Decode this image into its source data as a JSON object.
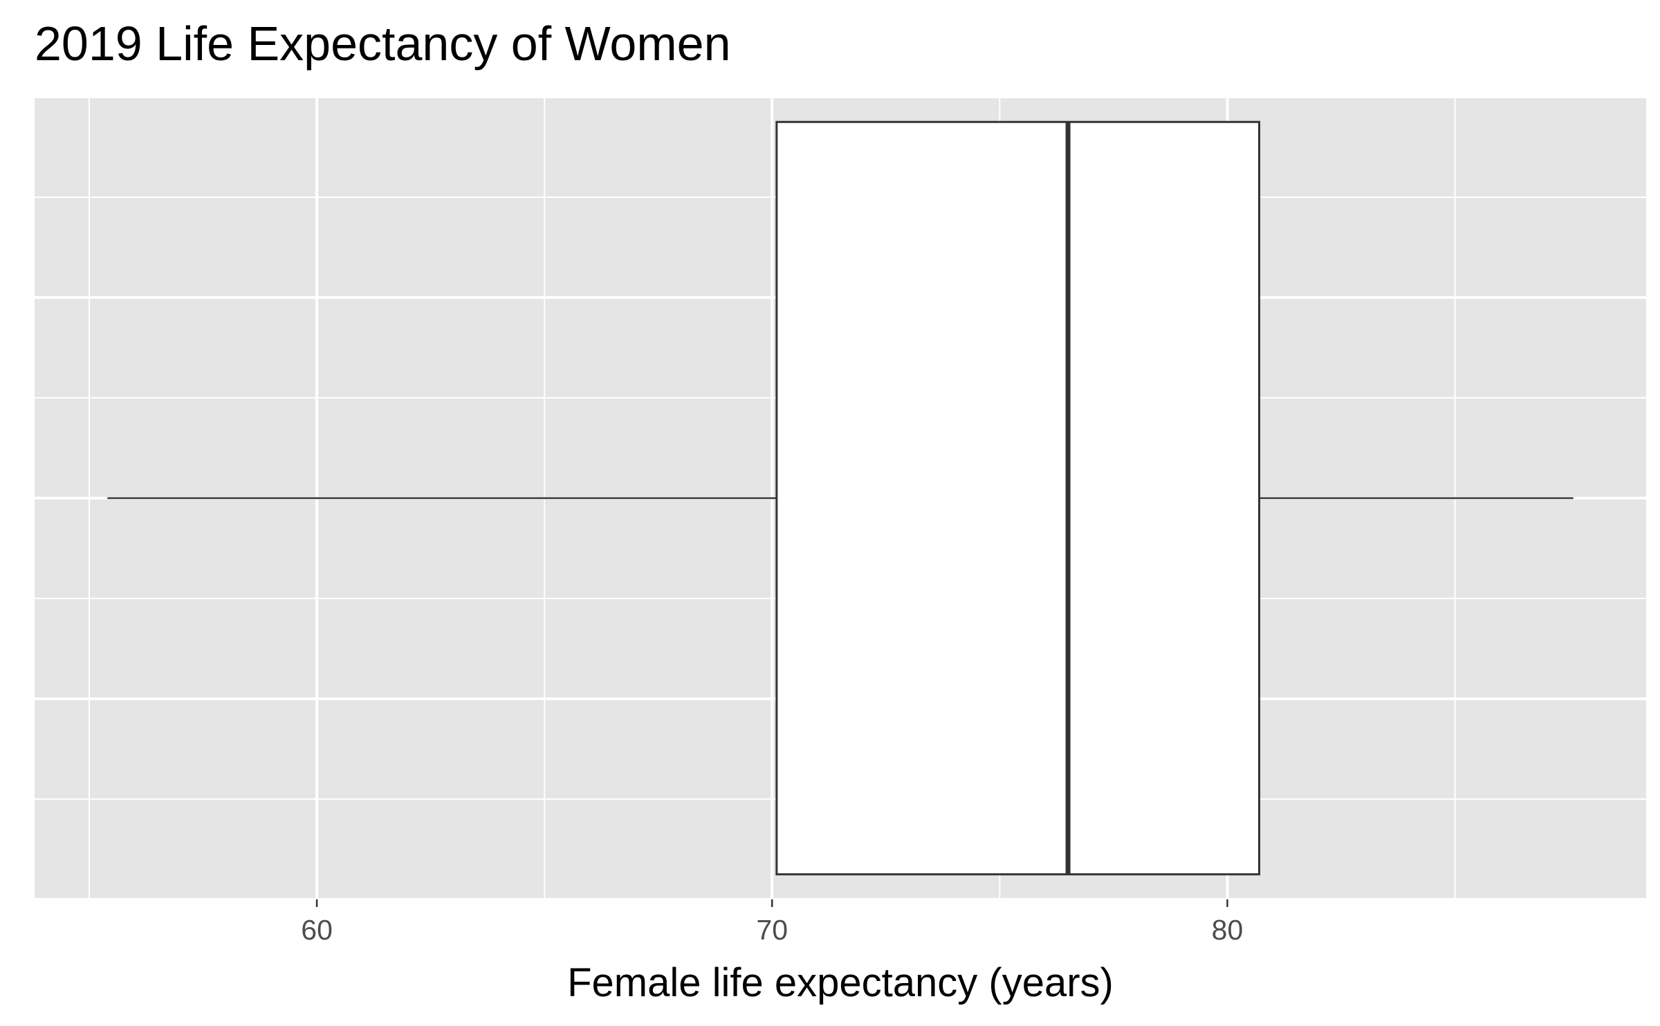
{
  "chart_data": {
    "type": "boxplot",
    "title": "2019 Life Expectancy of Women",
    "xlabel": "Female life expectancy (years)",
    "ylabel": "",
    "xlim": [
      53.8,
      89.2
    ],
    "ylim": [
      -0.4,
      0.4
    ],
    "x_major_ticks": [
      60,
      70,
      80
    ],
    "x_minor_ticks": [
      55,
      65,
      75,
      85
    ],
    "y_major_ticks": [
      -0.4,
      -0.2,
      0,
      0.2,
      0.4
    ],
    "y_minor_ticks": [
      -0.3,
      -0.1,
      0.1,
      0.3
    ],
    "grid": true,
    "box": {
      "whisker_low": 55.4,
      "q1": 70.1,
      "median": 76.5,
      "q3": 80.7,
      "whisker_high": 87.6,
      "y_extent": [
        -0.375,
        0.375
      ]
    },
    "colors": {
      "panel_background": "#e5e5e5",
      "grid": "#ffffff",
      "box_fill": "#ffffff",
      "box_line": "#333333"
    }
  }
}
